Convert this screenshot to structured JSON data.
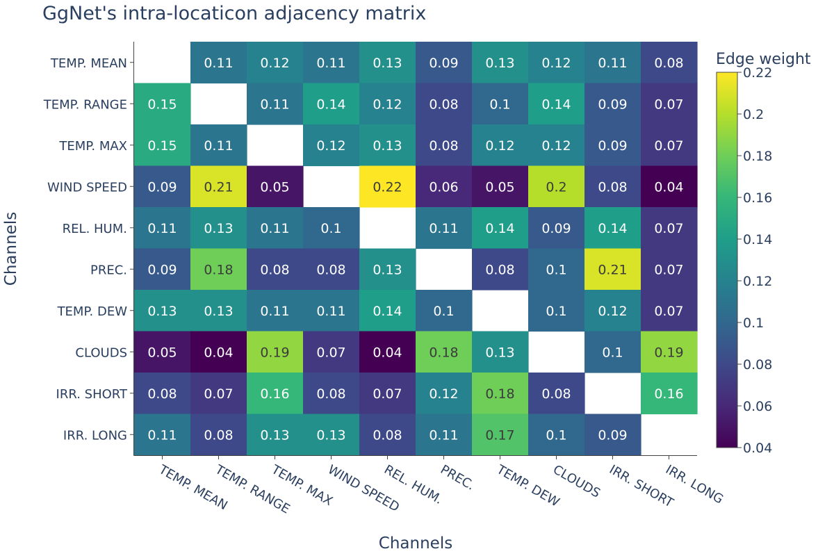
{
  "title": "GgNet's intra-locaticon adjacency matrix",
  "chart_data": {
    "type": "heatmap",
    "title": "GgNet's intra-locaticon adjacency matrix",
    "xlabel": "Channels",
    "ylabel": "Channels",
    "x_categories": [
      "TEMP. MEAN",
      "TEMP. RANGE",
      "TEMP. MAX",
      "WIND SPEED",
      "REL. HUM.",
      "PREC.",
      "TEMP. DEW",
      "CLOUDS",
      "IRR. SHORT",
      "IRR. LONG"
    ],
    "y_categories": [
      "TEMP. MEAN",
      "TEMP. RANGE",
      "TEMP. MAX",
      "WIND SPEED",
      "REL. HUM.",
      "PREC.",
      "TEMP. DEW",
      "CLOUDS",
      "IRR. SHORT",
      "IRR. LONG"
    ],
    "values": [
      [
        null,
        0.11,
        0.12,
        0.11,
        0.13,
        0.09,
        0.13,
        0.12,
        0.11,
        0.08
      ],
      [
        0.15,
        null,
        0.11,
        0.14,
        0.12,
        0.08,
        0.1,
        0.14,
        0.09,
        0.07
      ],
      [
        0.15,
        0.11,
        null,
        0.12,
        0.13,
        0.08,
        0.12,
        0.12,
        0.09,
        0.07
      ],
      [
        0.09,
        0.21,
        0.05,
        null,
        0.22,
        0.06,
        0.05,
        0.2,
        0.08,
        0.04
      ],
      [
        0.11,
        0.13,
        0.11,
        0.1,
        null,
        0.11,
        0.14,
        0.09,
        0.14,
        0.07
      ],
      [
        0.09,
        0.18,
        0.08,
        0.08,
        0.13,
        null,
        0.08,
        0.1,
        0.21,
        0.07
      ],
      [
        0.13,
        0.13,
        0.11,
        0.11,
        0.14,
        0.1,
        null,
        0.1,
        0.12,
        0.07
      ],
      [
        0.05,
        0.04,
        0.19,
        0.07,
        0.04,
        0.18,
        0.13,
        null,
        0.1,
        0.19
      ],
      [
        0.08,
        0.07,
        0.16,
        0.08,
        0.07,
        0.12,
        0.18,
        0.08,
        null,
        0.16
      ],
      [
        0.11,
        0.08,
        0.13,
        0.13,
        0.08,
        0.11,
        0.17,
        0.1,
        0.09,
        null
      ]
    ],
    "colorscale": "viridis",
    "zmin": 0.04,
    "zmax": 0.22,
    "colorbar": {
      "title": "Edge weight",
      "ticks": [
        0.04,
        0.06,
        0.08,
        0.1,
        0.12,
        0.14,
        0.16,
        0.18,
        0.2,
        0.22
      ],
      "tick_labels": [
        "0.04",
        "0.06",
        "0.08",
        "0.1",
        "0.12",
        "0.14",
        "0.16",
        "0.18",
        "0.2",
        "0.22"
      ]
    }
  }
}
